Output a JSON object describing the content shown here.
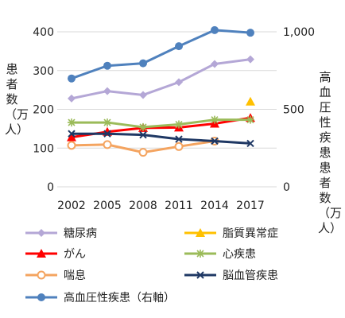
{
  "chart_data": {
    "type": "line",
    "x": [
      "2002",
      "2005",
      "2008",
      "2011",
      "2014",
      "2017"
    ],
    "y_left_ticks": [
      "0",
      "100",
      "200",
      "300",
      "400"
    ],
    "y_right_ticks": [
      "0",
      "500",
      "1,000"
    ],
    "ylim_left": [
      0,
      400
    ],
    "ylim_right": [
      0,
      1000
    ],
    "ylabel_left": "患者数（万人）",
    "ylabel_right": "高血圧性疾患患者数（万人）",
    "grid": true,
    "legend_position": "bottom",
    "series": [
      {
        "name": "糖尿病",
        "axis": "left",
        "color": "#b4a7d6",
        "marker": "diamond",
        "values": [
          228,
          247,
          237,
          270,
          317,
          329
        ]
      },
      {
        "name": "脂質異常症",
        "axis": "left",
        "color": "#ffc000",
        "marker": "triangle",
        "values": [
          null,
          null,
          null,
          null,
          null,
          220
        ]
      },
      {
        "name": "がん",
        "axis": "left",
        "color": "#ff0000",
        "marker": "triangle",
        "values": [
          128,
          142,
          152,
          153,
          163,
          178
        ]
      },
      {
        "name": "心疾患",
        "axis": "left",
        "color": "#9bbb59",
        "marker": "asterisk",
        "values": [
          166,
          166,
          154,
          161,
          173,
          173
        ]
      },
      {
        "name": "喘息",
        "axis": "left",
        "color": "#f4a460",
        "marker": "circle-open",
        "values": [
          107,
          109,
          89,
          104,
          118,
          null
        ]
      },
      {
        "name": "脳血管疾患",
        "axis": "left",
        "color": "#1f3864",
        "marker": "x",
        "values": [
          137,
          137,
          134,
          123,
          118,
          112
        ]
      },
      {
        "name": "高血圧性疾患（右軸）",
        "axis": "right",
        "color": "#4f81bd",
        "marker": "circle",
        "values": [
          699,
          781,
          797,
          907,
          1011,
          994
        ]
      }
    ]
  }
}
